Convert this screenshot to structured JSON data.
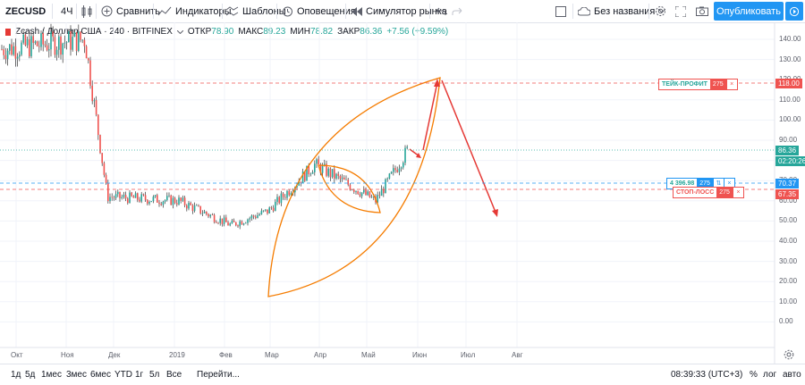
{
  "toolbar": {
    "symbol": "ZECUSD",
    "interval": "4Ч",
    "compare": "Сравнить",
    "indicators": "Индикаторы",
    "templates": "Шаблоны",
    "alerts": "Оповещения",
    "replay": "Симулятор рынка",
    "layout_name": "Без названия",
    "publish": "Опубликовать"
  },
  "legend": {
    "title": "Zcash / Доллар США · 240 · BITFINEX",
    "open_label": "ОТКР",
    "open_val": "78.90",
    "high_label": "МАКС",
    "high_val": "89.23",
    "low_label": "МИН",
    "low_val": "78.82",
    "close_label": "ЗАКР",
    "close_val": "86.36",
    "change": "+7.56 (+9.59%)"
  },
  "price_axis": [
    "140.00",
    "130.00",
    "120.00",
    "110.00",
    "100.00",
    "90.00",
    "80.00",
    "70.00",
    "60.00",
    "50.00",
    "40.00",
    "30.00",
    "20.00",
    "10.00",
    "0.00"
  ],
  "time_axis": [
    "Окт",
    "Ноя",
    "Дек",
    "2019",
    "Фев",
    "Мар",
    "Апр",
    "Май",
    "Июн",
    "Июл",
    "Авг"
  ],
  "tags": {
    "take_profit_price": "118.00",
    "last_price": "86.36",
    "countdown": "02:20:26",
    "entry_price": "70.37",
    "stop_price": "67.35"
  },
  "orders": {
    "take_profit_label": "ТЕЙК-ПРОФИТ",
    "take_profit_qty": "275",
    "entry_label": "4 396.98",
    "entry_qty": "275",
    "stop_label": "СТОП-ЛОСС",
    "stop_qty": "275"
  },
  "bottom": {
    "ranges": [
      "1д",
      "5д",
      "1мес",
      "3мес",
      "6мес",
      "YTD",
      "1г",
      "5л",
      "Все"
    ],
    "goto": "Перейти...",
    "clock": "08:39:33 (UTC+3)",
    "percent": "%",
    "log": "лог",
    "auto": "авто"
  },
  "colors": {
    "up": "#26a69a",
    "down": "#ef5350",
    "drawing_orange": "#f57c00",
    "arrow_red": "#e53935",
    "accent": "#2196f3"
  },
  "chart_data": {
    "type": "line",
    "ylim": [
      0,
      145
    ],
    "x": [
      "Окт",
      "Ноя",
      "Дек",
      "2019",
      "Фев",
      "Мар",
      "Апр",
      "Май",
      "Июн"
    ],
    "series": [
      {
        "values": [
          135,
          140,
          62,
          60,
          48,
          55,
          78,
          60,
          86
        ]
      }
    ],
    "grid": true
  }
}
